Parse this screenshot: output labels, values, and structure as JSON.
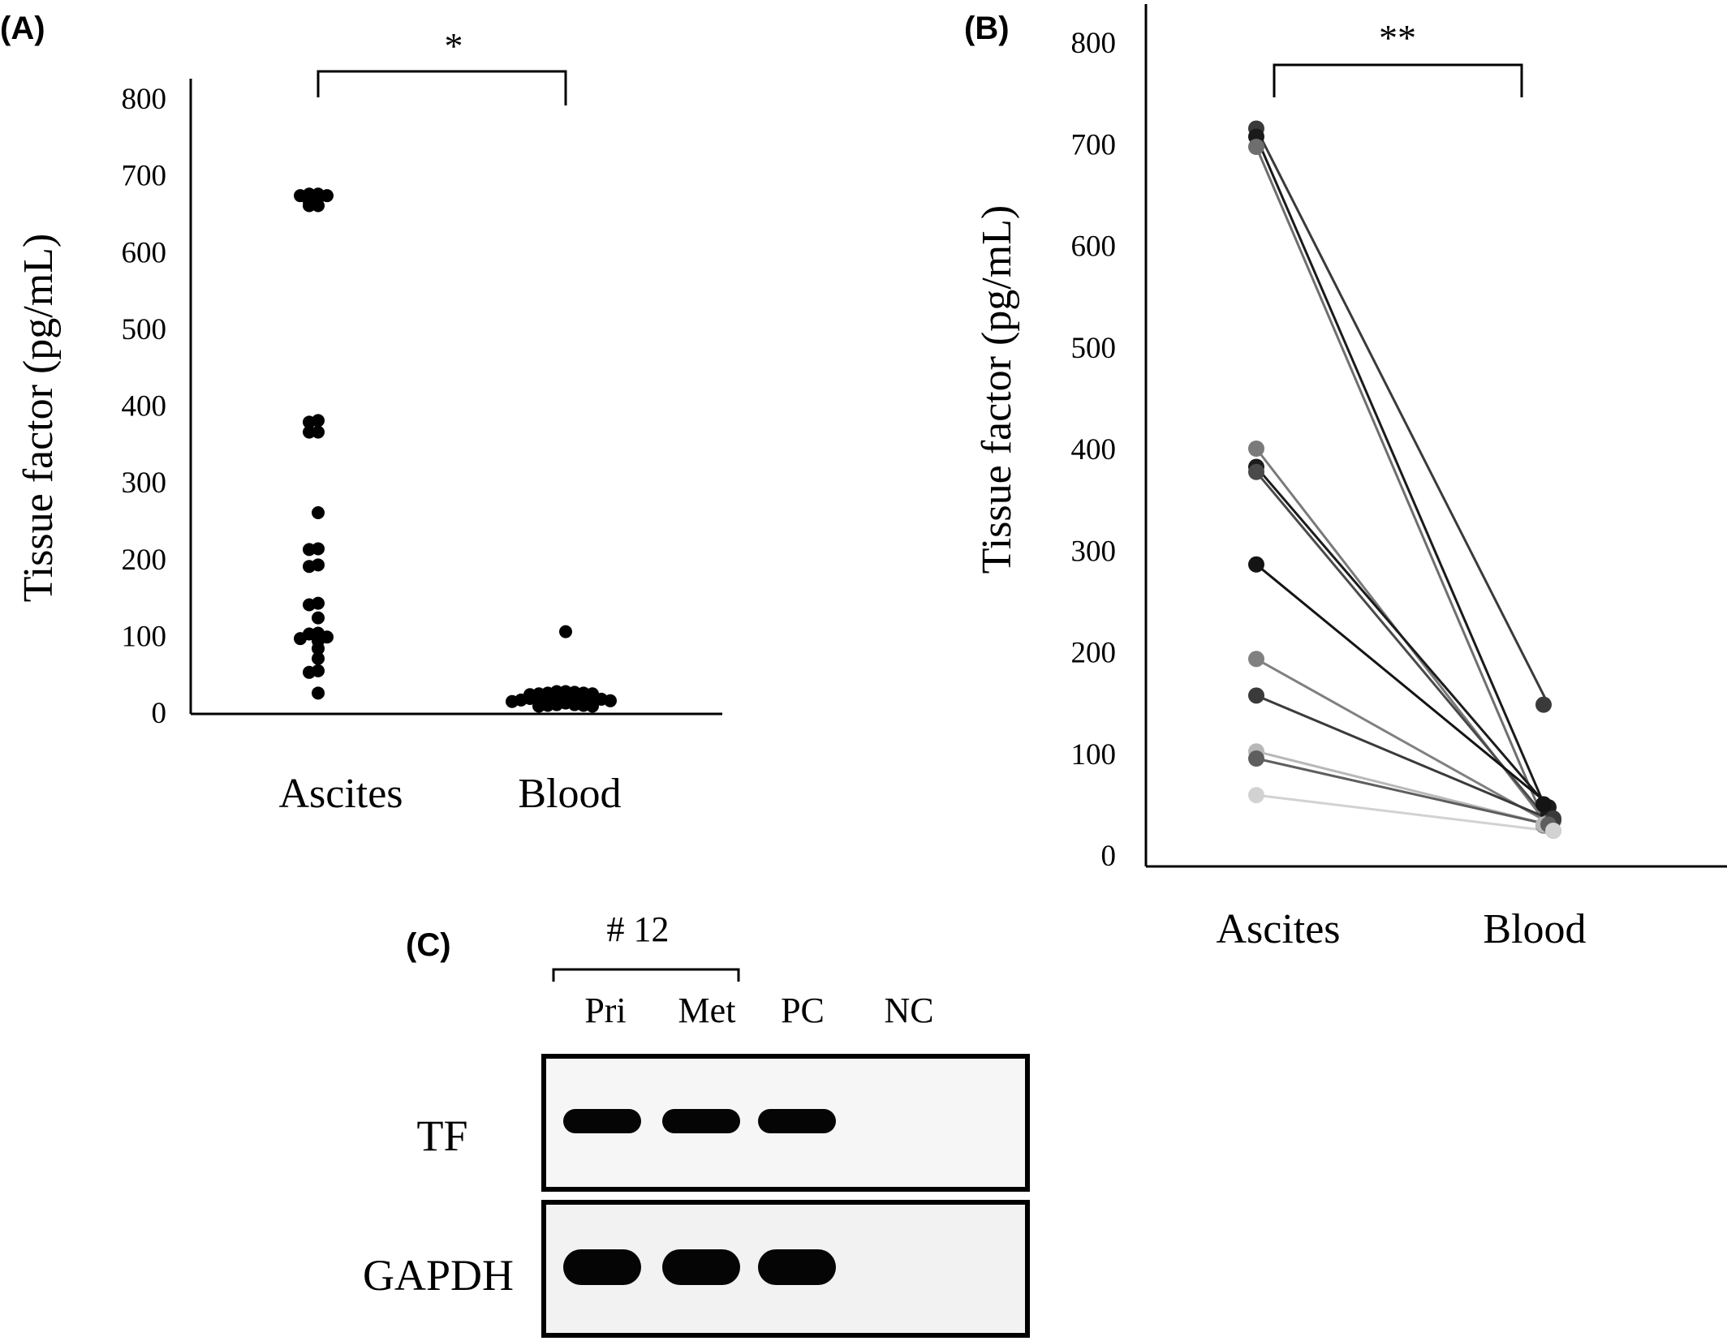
{
  "chart_data": [
    {
      "panel": "(A)",
      "type": "scatter",
      "ylabel": "Tissue factor (pg/mL)",
      "ylim": [
        0,
        800
      ],
      "yticks": [
        0,
        100,
        200,
        300,
        400,
        500,
        600,
        700,
        800
      ],
      "categories": [
        "Ascites",
        "Blood"
      ],
      "significance": "*",
      "series": [
        {
          "category": "Ascites",
          "values": [
            675,
            675,
            673,
            673,
            670,
            665,
            660,
            660,
            380,
            378,
            365,
            365,
            260,
            213,
            212,
            192,
            190,
            142,
            140,
            123,
            103,
            102,
            98,
            96,
            93,
            83,
            70,
            54,
            52,
            25
          ]
        },
        {
          "category": "Blood",
          "values": [
            105,
            27,
            27,
            26,
            25,
            25,
            24,
            24,
            23,
            22,
            22,
            21,
            20,
            20,
            19,
            18,
            18,
            17,
            16,
            15,
            14,
            12,
            10,
            10,
            9,
            9,
            8,
            8
          ]
        }
      ]
    },
    {
      "panel": "(B)",
      "type": "line",
      "ylabel": "Tissue factor (pg/mL)",
      "ylim": [
        0,
        800
      ],
      "yticks": [
        0,
        100,
        200,
        300,
        400,
        500,
        600,
        700,
        800
      ],
      "categories": [
        "Ascites",
        "Blood"
      ],
      "significance": "**",
      "pairs": [
        {
          "values": [
            715,
            148
          ],
          "color": "#3a3a3a"
        },
        {
          "values": [
            707,
            40
          ],
          "color": "#1a1a1a"
        },
        {
          "values": [
            697,
            24
          ],
          "color": "#6e6e6e"
        },
        {
          "values": [
            400,
            29
          ],
          "color": "#7a7a7a"
        },
        {
          "values": [
            382,
            47
          ],
          "color": "#1c1c1c"
        },
        {
          "values": [
            377,
            34
          ],
          "color": "#4a4a4a"
        },
        {
          "values": [
            286,
            50
          ],
          "color": "#141414"
        },
        {
          "values": [
            193,
            32
          ],
          "color": "#808080"
        },
        {
          "values": [
            157,
            36
          ],
          "color": "#3a3a3a"
        },
        {
          "values": [
            102,
            30
          ],
          "color": "#b8b8b8"
        },
        {
          "values": [
            95,
            30
          ],
          "color": "#5e5e5e"
        },
        {
          "values": [
            59,
            24
          ],
          "color": "#d2d2d2"
        }
      ]
    },
    {
      "panel": "(C)",
      "type": "table",
      "sample_label": "# 12",
      "lanes": [
        "Pri",
        "Met",
        "PC",
        "NC"
      ],
      "genes": [
        "TF",
        "GAPDH"
      ],
      "bands": [
        [
          1,
          1,
          1,
          0
        ],
        [
          1,
          1,
          1,
          0
        ]
      ]
    }
  ]
}
